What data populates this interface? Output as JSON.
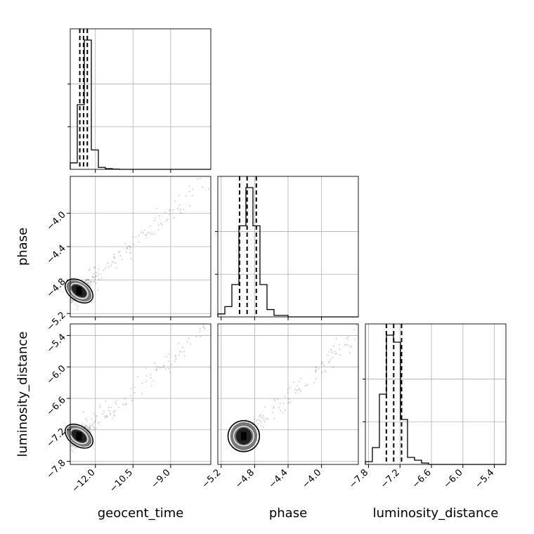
{
  "chart_data": {
    "type": "corner",
    "parameters": [
      "geocent_time",
      "phase",
      "luminosity_distance"
    ],
    "axis_labels": {
      "x": [
        "geocent_time",
        "phase",
        "luminosity_distance"
      ],
      "y": [
        "",
        "phase",
        "luminosity_distance"
      ]
    },
    "ranges": {
      "geocent_time": [
        -13.0,
        -7.4
      ],
      "phase": [
        -5.24,
        -3.56
      ],
      "luminosity_distance": [
        -7.86,
        -5.18
      ]
    },
    "ticks": {
      "geocent_time": [
        -12.0,
        -10.5,
        -9.0
      ],
      "phase": [
        -5.2,
        -4.8,
        -4.4,
        -4.0
      ],
      "luminosity_distance": [
        -7.8,
        -7.2,
        -6.6,
        -6.0,
        -5.4
      ]
    },
    "tick_labels": {
      "geocent_time": [
        "−12.0",
        "−10.5",
        "−9.0"
      ],
      "phase": [
        "−5.2",
        "−4.8",
        "−4.4",
        "−4.0"
      ],
      "luminosity_distance": [
        "−7.8",
        "−7.2",
        "−6.6",
        "−6.0",
        "−5.4"
      ]
    },
    "histograms": {
      "geocent_time": {
        "bin_edges": [
          -13.0,
          -12.72,
          -12.44,
          -12.16,
          -11.88,
          -11.6,
          -11.32,
          -11.04,
          -10.76,
          -10.48,
          -10.2,
          -9.92,
          -9.64,
          -9.36,
          -9.08,
          -8.8,
          -8.52,
          -8.24,
          -7.96,
          -7.68,
          -7.4
        ],
        "counts": [
          0.05,
          0.5,
          1.0,
          0.15,
          0.015,
          0.005,
          0.002,
          0,
          0,
          0,
          0,
          0,
          0,
          0,
          0,
          0,
          0,
          0,
          0,
          0
        ],
        "quantiles": [
          -12.62,
          -12.47,
          -12.32
        ]
      },
      "phase": {
        "bin_edges": [
          -5.24,
          -5.156,
          -5.072,
          -4.988,
          -4.904,
          -4.82,
          -4.736,
          -4.652,
          -4.568,
          -4.484,
          -4.4,
          -4.316,
          -4.232,
          -4.148,
          -4.064,
          -3.98,
          -3.896,
          -3.812,
          -3.728,
          -3.644,
          -3.56
        ],
        "counts": [
          0.02,
          0.07,
          0.22,
          0.62,
          0.88,
          0.62,
          0.22,
          0.05,
          0.01,
          0.01,
          0,
          0,
          0,
          0,
          0,
          0,
          0,
          0,
          0,
          0
        ],
        "quantiles": [
          -4.98,
          -4.89,
          -4.78
        ]
      },
      "luminosity_distance": {
        "bin_edges": [
          -7.86,
          -7.726,
          -7.592,
          -7.458,
          -7.324,
          -7.19,
          -7.056,
          -6.922,
          -6.788,
          -6.654,
          -6.52,
          -6.386,
          -6.252,
          -6.118,
          -5.984,
          -5.85,
          -5.716,
          -5.582,
          -5.448,
          -5.314,
          -5.18
        ],
        "counts": [
          0.02,
          0.12,
          0.5,
          0.92,
          0.87,
          0.32,
          0.05,
          0.03,
          0.01,
          0,
          0,
          0,
          0,
          0,
          0,
          0,
          0,
          0,
          0,
          0
        ],
        "quantiles": [
          -7.46,
          -7.32,
          -7.17
        ]
      }
    },
    "density_centers": {
      "geocent_time": -12.65,
      "phase": -4.93,
      "luminosity_distance": -7.32
    },
    "grid": true,
    "color": "#000000"
  }
}
